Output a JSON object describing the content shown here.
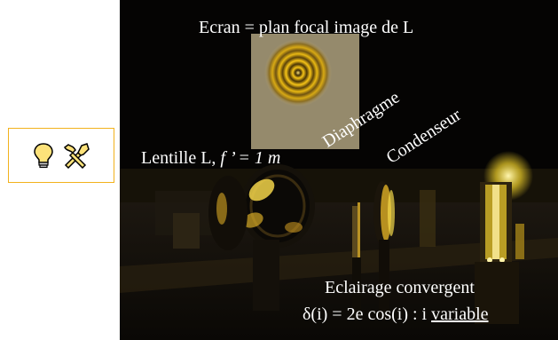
{
  "toolbar": {
    "icons": [
      "lightbulb-icon",
      "tools-icon"
    ],
    "accent": "#f2b21c"
  },
  "photo": {
    "captions": {
      "ecran": "Ecran = plan focal image de L",
      "lentille_label": "Lentille L,",
      "lentille_focal": "f ’ = 1 m",
      "diaphragme": "Diaphragme",
      "condenseur": "Condenseur",
      "eclairage": "Eclairage convergent",
      "formula_main": "δ(i) = 2e cos(i) : i",
      "formula_variable": "variable"
    },
    "colors": {
      "background": "#050403",
      "fringe": "#f6c417",
      "screen": "#c7b890"
    }
  }
}
